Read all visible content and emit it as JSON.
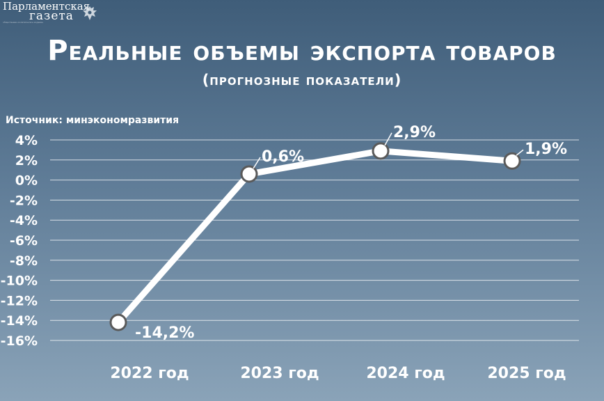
{
  "logo": {
    "line1": "Парламентская",
    "line2": "газета",
    "tagline": "общественно-политическое издание"
  },
  "colors": {
    "background_top": "#3f5d79",
    "background_bottom": "#8aa3b8",
    "line": "#ffffff",
    "marker_stroke": "#5a5a5a",
    "grid": "#ffffff"
  },
  "source": "Источник: минэкономразвития",
  "chart_data": {
    "type": "line",
    "title": "Реальные объемы экспорта товаров",
    "subtitle": "(прогнозные показатели)",
    "categories": [
      "2022 год",
      "2023 год",
      "2024 год",
      "2025 год"
    ],
    "series": [
      {
        "values": [
          -14.2,
          0.6,
          2.9,
          1.9
        ]
      }
    ],
    "data_labels": [
      "-14,2%",
      "0,6%",
      "2,9%",
      "1,9%"
    ],
    "yticks": [
      "4%",
      "2%",
      "0%",
      "-2%",
      "-4%",
      "-6%",
      "-8%",
      "-10%",
      "-12%",
      "-14%",
      "-16%"
    ],
    "ytick_values": [
      4,
      2,
      0,
      -2,
      -4,
      -6,
      -8,
      -10,
      -12,
      -14,
      -16
    ],
    "ylim": [
      -16,
      4
    ],
    "grid": true,
    "legend": "none"
  }
}
